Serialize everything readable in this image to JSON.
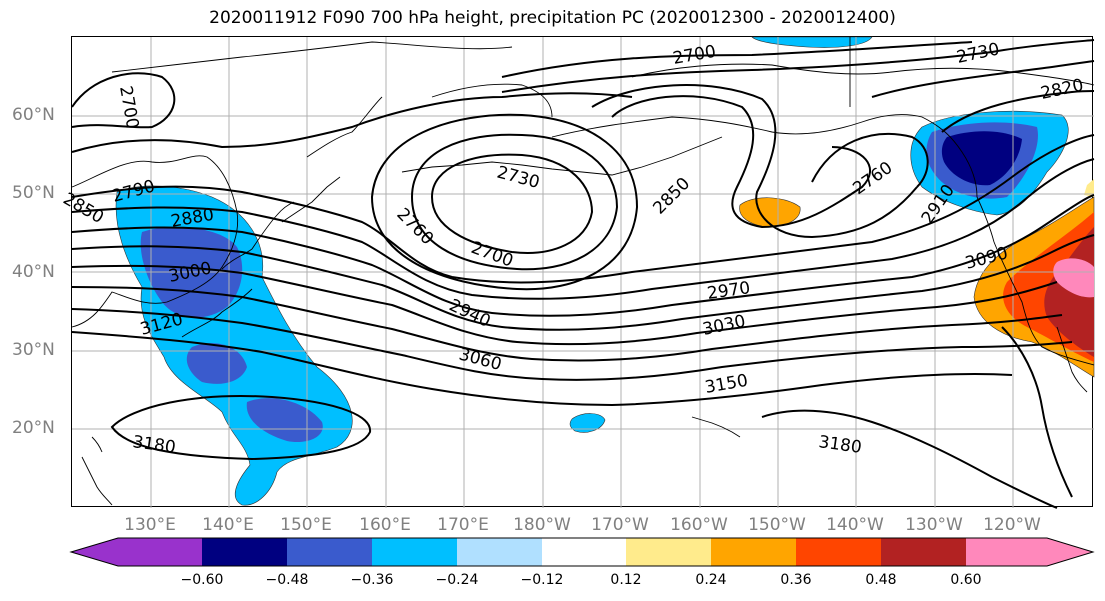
{
  "title": "2020011912 F090 700 hPa height, precipitation PC (2020012300 - 2020012400)",
  "axes": {
    "lat_labels": [
      "60°N",
      "50°N",
      "40°N",
      "30°N",
      "20°N"
    ],
    "lon_labels": [
      "130°E",
      "140°E",
      "150°E",
      "160°E",
      "170°E",
      "180°W",
      "170°W",
      "160°W",
      "150°W",
      "140°W",
      "130°W",
      "120°W"
    ]
  },
  "contour_labels": [
    "2700",
    "2700",
    "2730",
    "2730",
    "2820",
    "2790",
    "2850",
    "2880",
    "2760",
    "2850",
    "2760",
    "2910",
    "2700",
    "3000",
    "3090",
    "2970",
    "2940",
    "3030",
    "3120",
    "3060",
    "3150",
    "3180",
    "3180"
  ],
  "colorbar": {
    "tick_labels": [
      "−0.60",
      "−0.48",
      "−0.36",
      "−0.24",
      "−0.12",
      "0.12",
      "0.24",
      "0.36",
      "0.48",
      "0.60"
    ],
    "colors": [
      "#9932cc",
      "#000080",
      "#3a5bcd",
      "#00bfff",
      "#b0e0ff",
      "#ffffff",
      "#ffeb8c",
      "#ffa500",
      "#ff4500",
      "#b22222",
      "#ff88bb"
    ]
  },
  "colors": {
    "contour": "#000000",
    "grid": "#b0b0b0",
    "coast": "#000000"
  }
}
